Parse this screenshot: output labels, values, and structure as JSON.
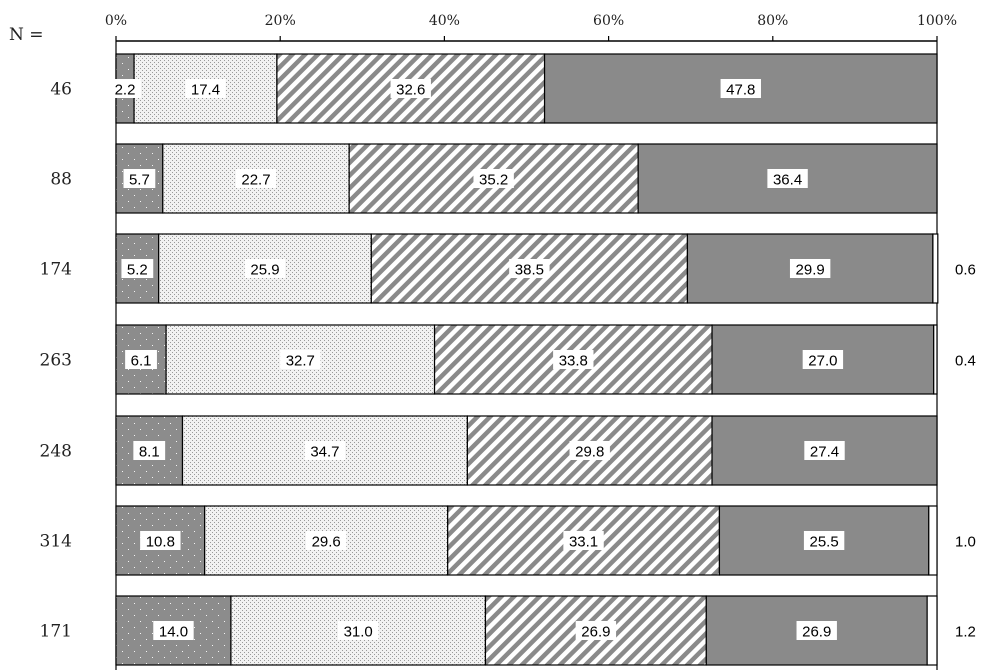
{
  "chart_data": {
    "type": "bar",
    "orientation": "horizontal",
    "stacked": true,
    "n_header": "N =",
    "x_ticks": [
      "0%",
      "20%",
      "40%",
      "60%",
      "80%",
      "100%"
    ],
    "xlim": [
      0,
      100
    ],
    "grid": false,
    "categories": [
      "46",
      "88",
      "174",
      "263",
      "248",
      "314",
      "171"
    ],
    "series": [
      {
        "pattern": "dark-dots",
        "fill": "#8c8c8c",
        "values": [
          2.2,
          5.7,
          5.2,
          6.1,
          8.1,
          10.8,
          14.0
        ]
      },
      {
        "pattern": "light-dots",
        "fill": "#e6e6e6",
        "values": [
          17.4,
          22.7,
          25.9,
          32.7,
          34.7,
          29.6,
          31.0
        ]
      },
      {
        "pattern": "diagonal-stripes",
        "fill": "#9a9a9a",
        "values": [
          32.6,
          35.2,
          38.5,
          33.8,
          29.8,
          33.1,
          26.9
        ]
      },
      {
        "pattern": "solid-gray",
        "fill": "#8a8a8a",
        "values": [
          47.8,
          36.4,
          29.9,
          27.0,
          27.4,
          25.5,
          26.9
        ]
      },
      {
        "pattern": "white",
        "fill": "#ffffff",
        "values": [
          0,
          0,
          0.6,
          0.4,
          0,
          1.0,
          1.2
        ]
      }
    ],
    "value_labels": [
      [
        "2.2",
        "17.4",
        "32.6",
        "47.8",
        ""
      ],
      [
        "5.7",
        "22.7",
        "35.2",
        "36.4",
        ""
      ],
      [
        "5.2",
        "25.9",
        "38.5",
        "29.9",
        "0.6"
      ],
      [
        "6.1",
        "32.7",
        "33.8",
        "27.0",
        "0.4"
      ],
      [
        "8.1",
        "34.7",
        "29.8",
        "27.4",
        ""
      ],
      [
        "10.8",
        "29.6",
        "33.1",
        "25.5",
        "1.0"
      ],
      [
        "14.0",
        "31.0",
        "26.9",
        "26.9",
        "1.2"
      ]
    ]
  }
}
